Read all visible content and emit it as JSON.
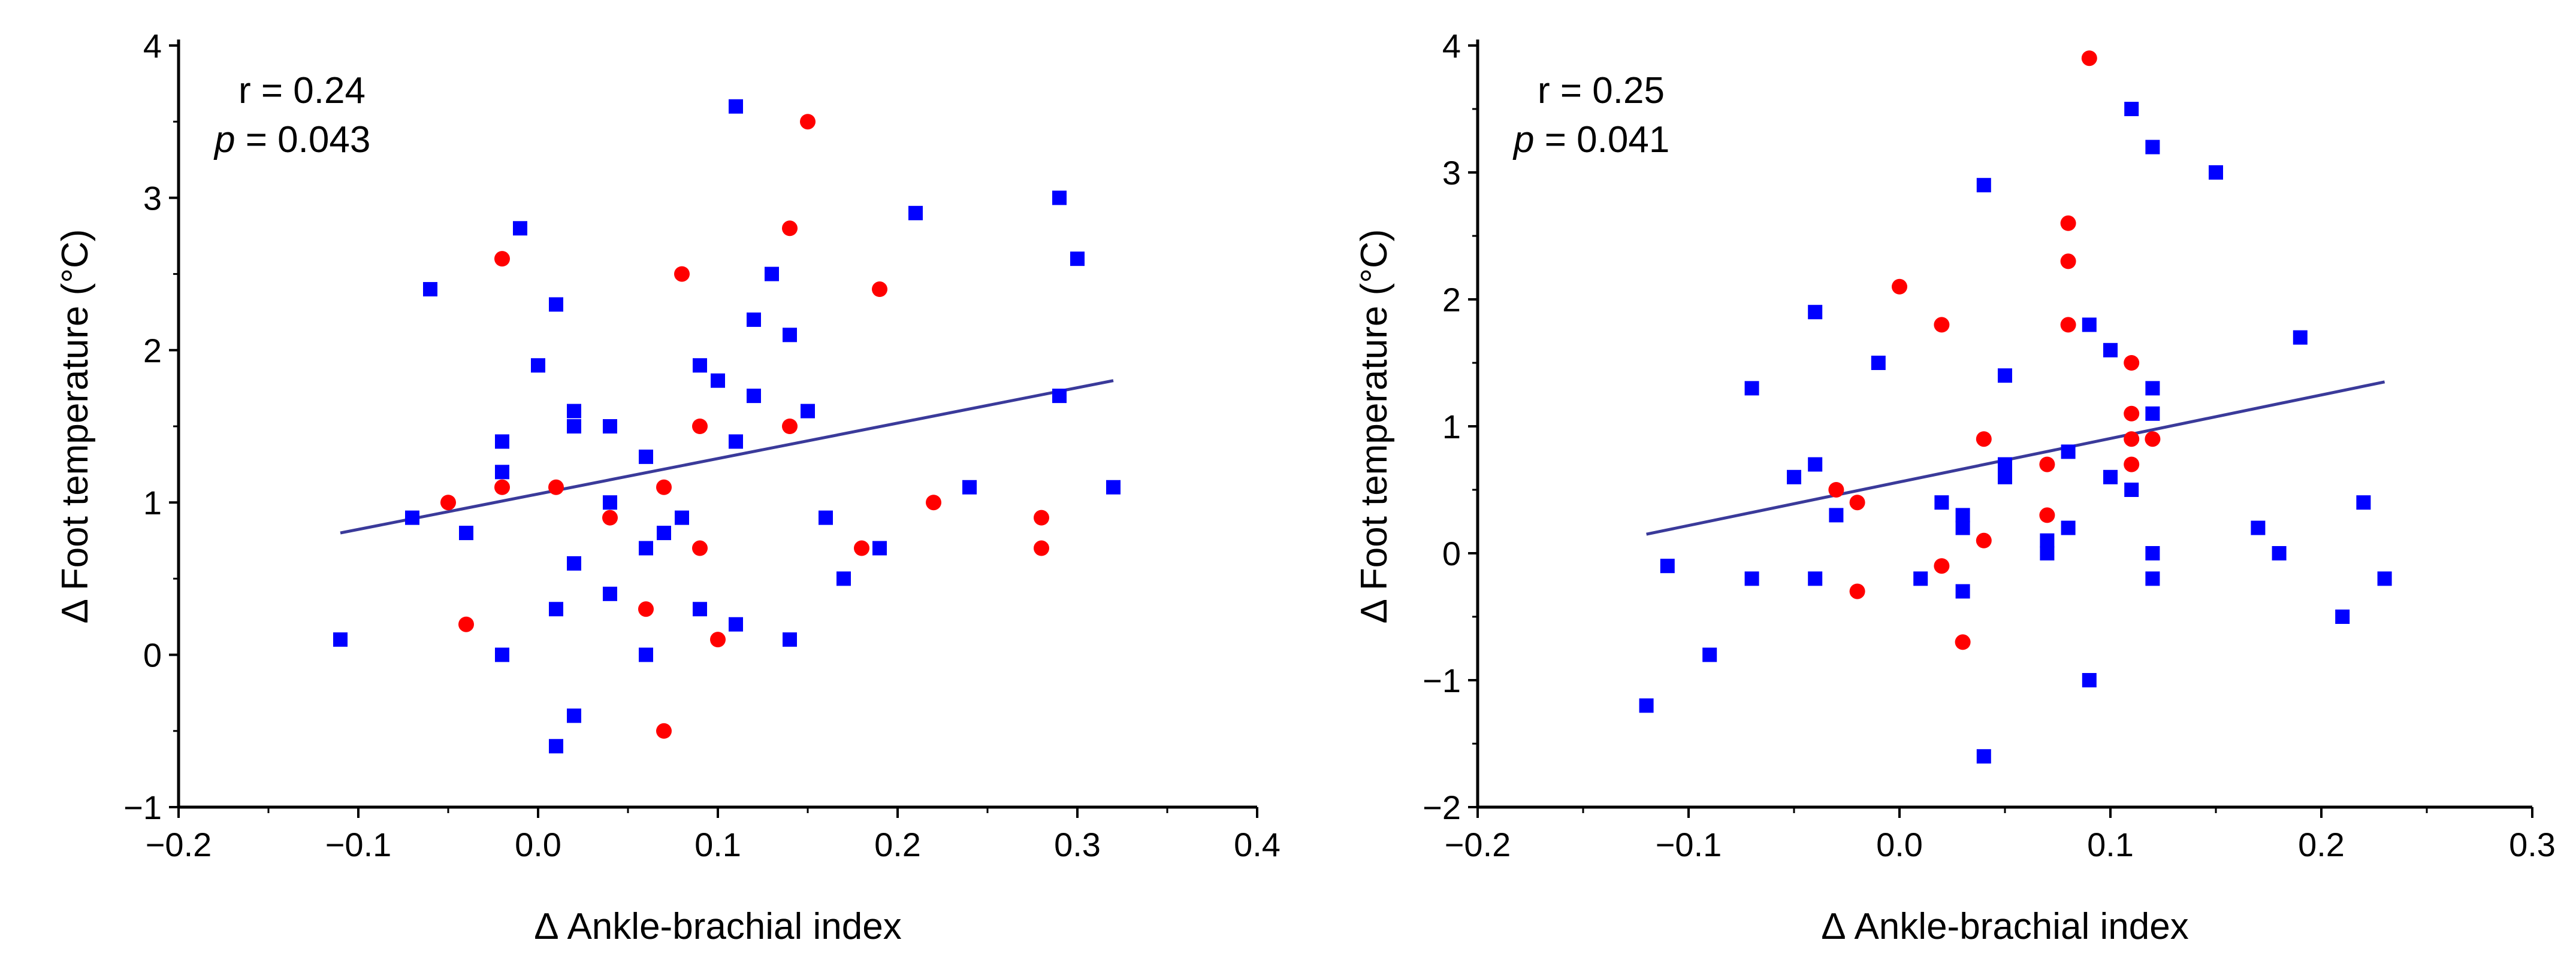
{
  "colors": {
    "series_a": "#0000ff",
    "series_b": "#ff0000",
    "fit_line": "#3a3a9a",
    "axis": "#000000"
  },
  "chart_data": [
    {
      "type": "scatter",
      "panel": "left",
      "xlabel": "Δ Ankle-brachial index",
      "ylabel": "Δ Foot temperature (°C)",
      "xlim": [
        -0.2,
        0.4
      ],
      "ylim": [
        -1,
        4
      ],
      "xticks": [
        -0.2,
        -0.1,
        0.0,
        0.1,
        0.2,
        0.3,
        0.4
      ],
      "xtick_labels": [
        "−0.2",
        "−0.1",
        "0.0",
        "0.1",
        "0.2",
        "0.3",
        "0.4"
      ],
      "yticks": [
        -1,
        0,
        1,
        2,
        3,
        4
      ],
      "ytick_labels": [
        "−1",
        "0",
        "1",
        "2",
        "3",
        "4"
      ],
      "grid": false,
      "annotation": {
        "r_text": "r = 0.24",
        "p_symbol": "p",
        "p_value": " = 0.043"
      },
      "fit_line": {
        "x": [
          -0.11,
          0.32
        ],
        "y": [
          0.8,
          1.8
        ]
      },
      "series": [
        {
          "marker": "square",
          "color": "#0000ff",
          "points": [
            [
              -0.11,
              0.1
            ],
            [
              -0.07,
              0.9
            ],
            [
              -0.06,
              2.4
            ],
            [
              -0.04,
              0.8
            ],
            [
              -0.02,
              1.4
            ],
            [
              -0.02,
              1.2
            ],
            [
              -0.02,
              0.0
            ],
            [
              -0.01,
              2.8
            ],
            [
              0.0,
              1.9
            ],
            [
              0.01,
              2.3
            ],
            [
              0.01,
              0.3
            ],
            [
              0.01,
              -0.6
            ],
            [
              0.02,
              1.6
            ],
            [
              0.02,
              1.5
            ],
            [
              0.02,
              0.6
            ],
            [
              0.02,
              -0.4
            ],
            [
              0.04,
              1.5
            ],
            [
              0.04,
              1.0
            ],
            [
              0.04,
              0.4
            ],
            [
              0.06,
              1.3
            ],
            [
              0.06,
              0.7
            ],
            [
              0.06,
              0.0
            ],
            [
              0.07,
              0.8
            ],
            [
              0.08,
              0.9
            ],
            [
              0.09,
              1.9
            ],
            [
              0.09,
              0.3
            ],
            [
              0.1,
              1.8
            ],
            [
              0.11,
              3.6
            ],
            [
              0.11,
              1.4
            ],
            [
              0.11,
              0.2
            ],
            [
              0.12,
              2.2
            ],
            [
              0.12,
              1.7
            ],
            [
              0.13,
              2.5
            ],
            [
              0.14,
              2.1
            ],
            [
              0.14,
              0.1
            ],
            [
              0.15,
              1.6
            ],
            [
              0.16,
              0.9
            ],
            [
              0.17,
              0.5
            ],
            [
              0.19,
              0.7
            ],
            [
              0.21,
              2.9
            ],
            [
              0.24,
              1.1
            ],
            [
              0.29,
              3.0
            ],
            [
              0.29,
              1.7
            ],
            [
              0.3,
              2.6
            ],
            [
              0.32,
              1.1
            ]
          ]
        },
        {
          "marker": "circle",
          "color": "#ff0000",
          "points": [
            [
              -0.05,
              1.0
            ],
            [
              -0.04,
              0.2
            ],
            [
              -0.02,
              2.6
            ],
            [
              -0.02,
              1.1
            ],
            [
              0.01,
              1.1
            ],
            [
              0.04,
              0.9
            ],
            [
              0.06,
              0.3
            ],
            [
              0.07,
              1.1
            ],
            [
              0.07,
              -0.5
            ],
            [
              0.08,
              2.5
            ],
            [
              0.09,
              1.5
            ],
            [
              0.09,
              0.7
            ],
            [
              0.1,
              0.1
            ],
            [
              0.14,
              2.8
            ],
            [
              0.14,
              1.5
            ],
            [
              0.15,
              3.5
            ],
            [
              0.18,
              0.7
            ],
            [
              0.19,
              2.4
            ],
            [
              0.22,
              1.0
            ],
            [
              0.28,
              0.9
            ],
            [
              0.28,
              0.7
            ]
          ]
        }
      ]
    },
    {
      "type": "scatter",
      "panel": "right",
      "xlabel": "Δ Ankle-brachial index",
      "ylabel": "Δ Foot temperature (°C)",
      "xlim": [
        -0.2,
        0.3
      ],
      "ylim": [
        -2,
        4
      ],
      "xticks": [
        -0.2,
        -0.1,
        0.0,
        0.1,
        0.2,
        0.3
      ],
      "xtick_labels": [
        "−0.2",
        "−0.1",
        "0.0",
        "0.1",
        "0.2",
        "0.3"
      ],
      "yticks": [
        -2,
        -1,
        0,
        1,
        2,
        3,
        4
      ],
      "ytick_labels": [
        "−2",
        "−1",
        "0",
        "1",
        "2",
        "3",
        "4"
      ],
      "grid": false,
      "annotation": {
        "r_text": "r = 0.25",
        "p_symbol": "p",
        "p_value": " = 0.041"
      },
      "fit_line": {
        "x": [
          -0.12,
          0.23
        ],
        "y": [
          0.15,
          1.35
        ]
      },
      "series": [
        {
          "marker": "square",
          "color": "#0000ff",
          "points": [
            [
              -0.12,
              -1.2
            ],
            [
              -0.11,
              -0.1
            ],
            [
              -0.09,
              -0.8
            ],
            [
              -0.07,
              1.3
            ],
            [
              -0.07,
              -0.2
            ],
            [
              -0.05,
              0.6
            ],
            [
              -0.04,
              1.9
            ],
            [
              -0.04,
              0.7
            ],
            [
              -0.04,
              -0.2
            ],
            [
              -0.03,
              0.3
            ],
            [
              -0.01,
              1.5
            ],
            [
              0.01,
              -0.2
            ],
            [
              0.02,
              0.4
            ],
            [
              0.03,
              0.3
            ],
            [
              0.03,
              0.2
            ],
            [
              0.03,
              -0.3
            ],
            [
              0.04,
              2.9
            ],
            [
              0.04,
              -1.6
            ],
            [
              0.05,
              1.4
            ],
            [
              0.05,
              0.7
            ],
            [
              0.05,
              0.6
            ],
            [
              0.07,
              0.1
            ],
            [
              0.07,
              0.0
            ],
            [
              0.08,
              0.8
            ],
            [
              0.08,
              0.2
            ],
            [
              0.09,
              1.8
            ],
            [
              0.09,
              -1.0
            ],
            [
              0.1,
              1.6
            ],
            [
              0.1,
              0.6
            ],
            [
              0.11,
              3.5
            ],
            [
              0.11,
              0.5
            ],
            [
              0.12,
              3.2
            ],
            [
              0.12,
              1.3
            ],
            [
              0.12,
              1.1
            ],
            [
              0.12,
              0.0
            ],
            [
              0.12,
              -0.2
            ],
            [
              0.15,
              3.0
            ],
            [
              0.17,
              0.2
            ],
            [
              0.18,
              0.0
            ],
            [
              0.19,
              1.7
            ],
            [
              0.21,
              -0.5
            ],
            [
              0.22,
              0.4
            ],
            [
              0.23,
              -0.2
            ]
          ]
        },
        {
          "marker": "circle",
          "color": "#ff0000",
          "points": [
            [
              -0.03,
              0.5
            ],
            [
              -0.02,
              0.4
            ],
            [
              -0.02,
              -0.3
            ],
            [
              0.0,
              2.1
            ],
            [
              0.02,
              1.8
            ],
            [
              0.02,
              -0.1
            ],
            [
              0.03,
              -0.7
            ],
            [
              0.04,
              0.9
            ],
            [
              0.04,
              0.1
            ],
            [
              0.07,
              0.7
            ],
            [
              0.07,
              0.3
            ],
            [
              0.08,
              2.6
            ],
            [
              0.08,
              2.3
            ],
            [
              0.08,
              1.8
            ],
            [
              0.09,
              3.9
            ],
            [
              0.11,
              1.5
            ],
            [
              0.11,
              1.1
            ],
            [
              0.11,
              0.9
            ],
            [
              0.11,
              0.7
            ],
            [
              0.12,
              0.9
            ]
          ]
        }
      ]
    }
  ]
}
